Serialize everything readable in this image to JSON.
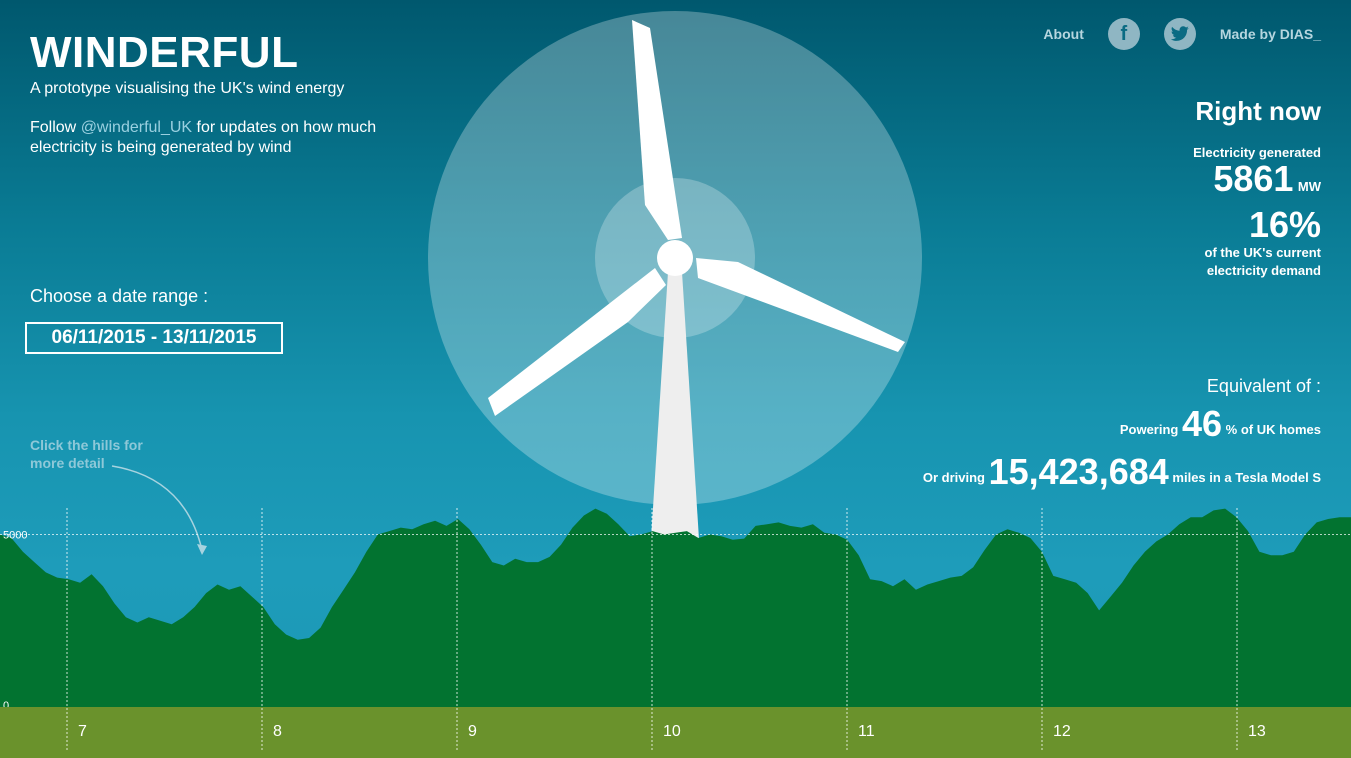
{
  "app": {
    "title": "WINDERFUL",
    "subtitle": "A prototype visualising the UK's wind energy",
    "follow_prefix": "Follow ",
    "follow_handle": "@winderful_UK",
    "follow_suffix": " for updates on how much electricity is being generated by wind"
  },
  "date_picker": {
    "label": "Choose a date range :",
    "value": "06/11/2015 - 13/11/2015"
  },
  "hint": "Click the hills for more detail",
  "nav": {
    "about": "About",
    "facebook_icon": "facebook-icon",
    "twitter_icon": "twitter-icon",
    "credit": "Made by DIAS_"
  },
  "right_now": {
    "title": "Right now",
    "generated_label": "Electricity generated",
    "generated_value": "5861",
    "generated_unit": "MW",
    "share_value": "16%",
    "share_desc": "of the UK's current electricity demand"
  },
  "equivalent": {
    "title": "Equivalent of :",
    "homes_prefix": "Powering",
    "homes_value": "46",
    "homes_suffix": "% of UK homes",
    "drive_prefix": "Or driving",
    "drive_value": "15,423,684",
    "drive_suffix": "miles in a Tesla Model S"
  },
  "colors": {
    "hills": "#027330",
    "ground": "#6a922c",
    "turbine": "#ffffff"
  },
  "chart_data": {
    "type": "area",
    "x_ticks": [
      "7",
      "8",
      "9",
      "10",
      "11",
      "12",
      "13"
    ],
    "y_ticks": [
      "5000",
      "0"
    ],
    "ylim": [
      0,
      6000
    ],
    "values": [
      5000,
      4900,
      4500,
      4200,
      3900,
      3750,
      3700,
      3600,
      3850,
      3500,
      3000,
      2600,
      2450,
      2600,
      2500,
      2400,
      2600,
      2900,
      3300,
      3550,
      3400,
      3500,
      3200,
      2900,
      2400,
      2100,
      1950,
      2000,
      2300,
      2900,
      3400,
      3900,
      4500,
      5000,
      5100,
      5200,
      5150,
      5300,
      5400,
      5250,
      5450,
      5150,
      4700,
      4200,
      4100,
      4300,
      4200,
      4200,
      4350,
      4700,
      5200,
      5550,
      5750,
      5600,
      5300,
      4950,
      5000,
      5100,
      5000,
      5050,
      5100,
      4900,
      5000,
      4950,
      4850,
      4880,
      5250,
      5300,
      5350,
      5250,
      5200,
      5300,
      5050,
      5000,
      4850,
      4400,
      3700,
      3650,
      3500,
      3700,
      3400,
      3550,
      3650,
      3750,
      3800,
      4050,
      4550,
      5000,
      5150,
      5050,
      4900,
      4500,
      3800,
      3700,
      3600,
      3300,
      2800,
      3200,
      3600,
      4100,
      4500,
      4800,
      5000,
      5300,
      5500,
      5500,
      5700,
      5750,
      5500,
      5100,
      4500,
      4400,
      4400,
      4500,
      5000,
      5350,
      5450,
      5500,
      5500
    ]
  }
}
